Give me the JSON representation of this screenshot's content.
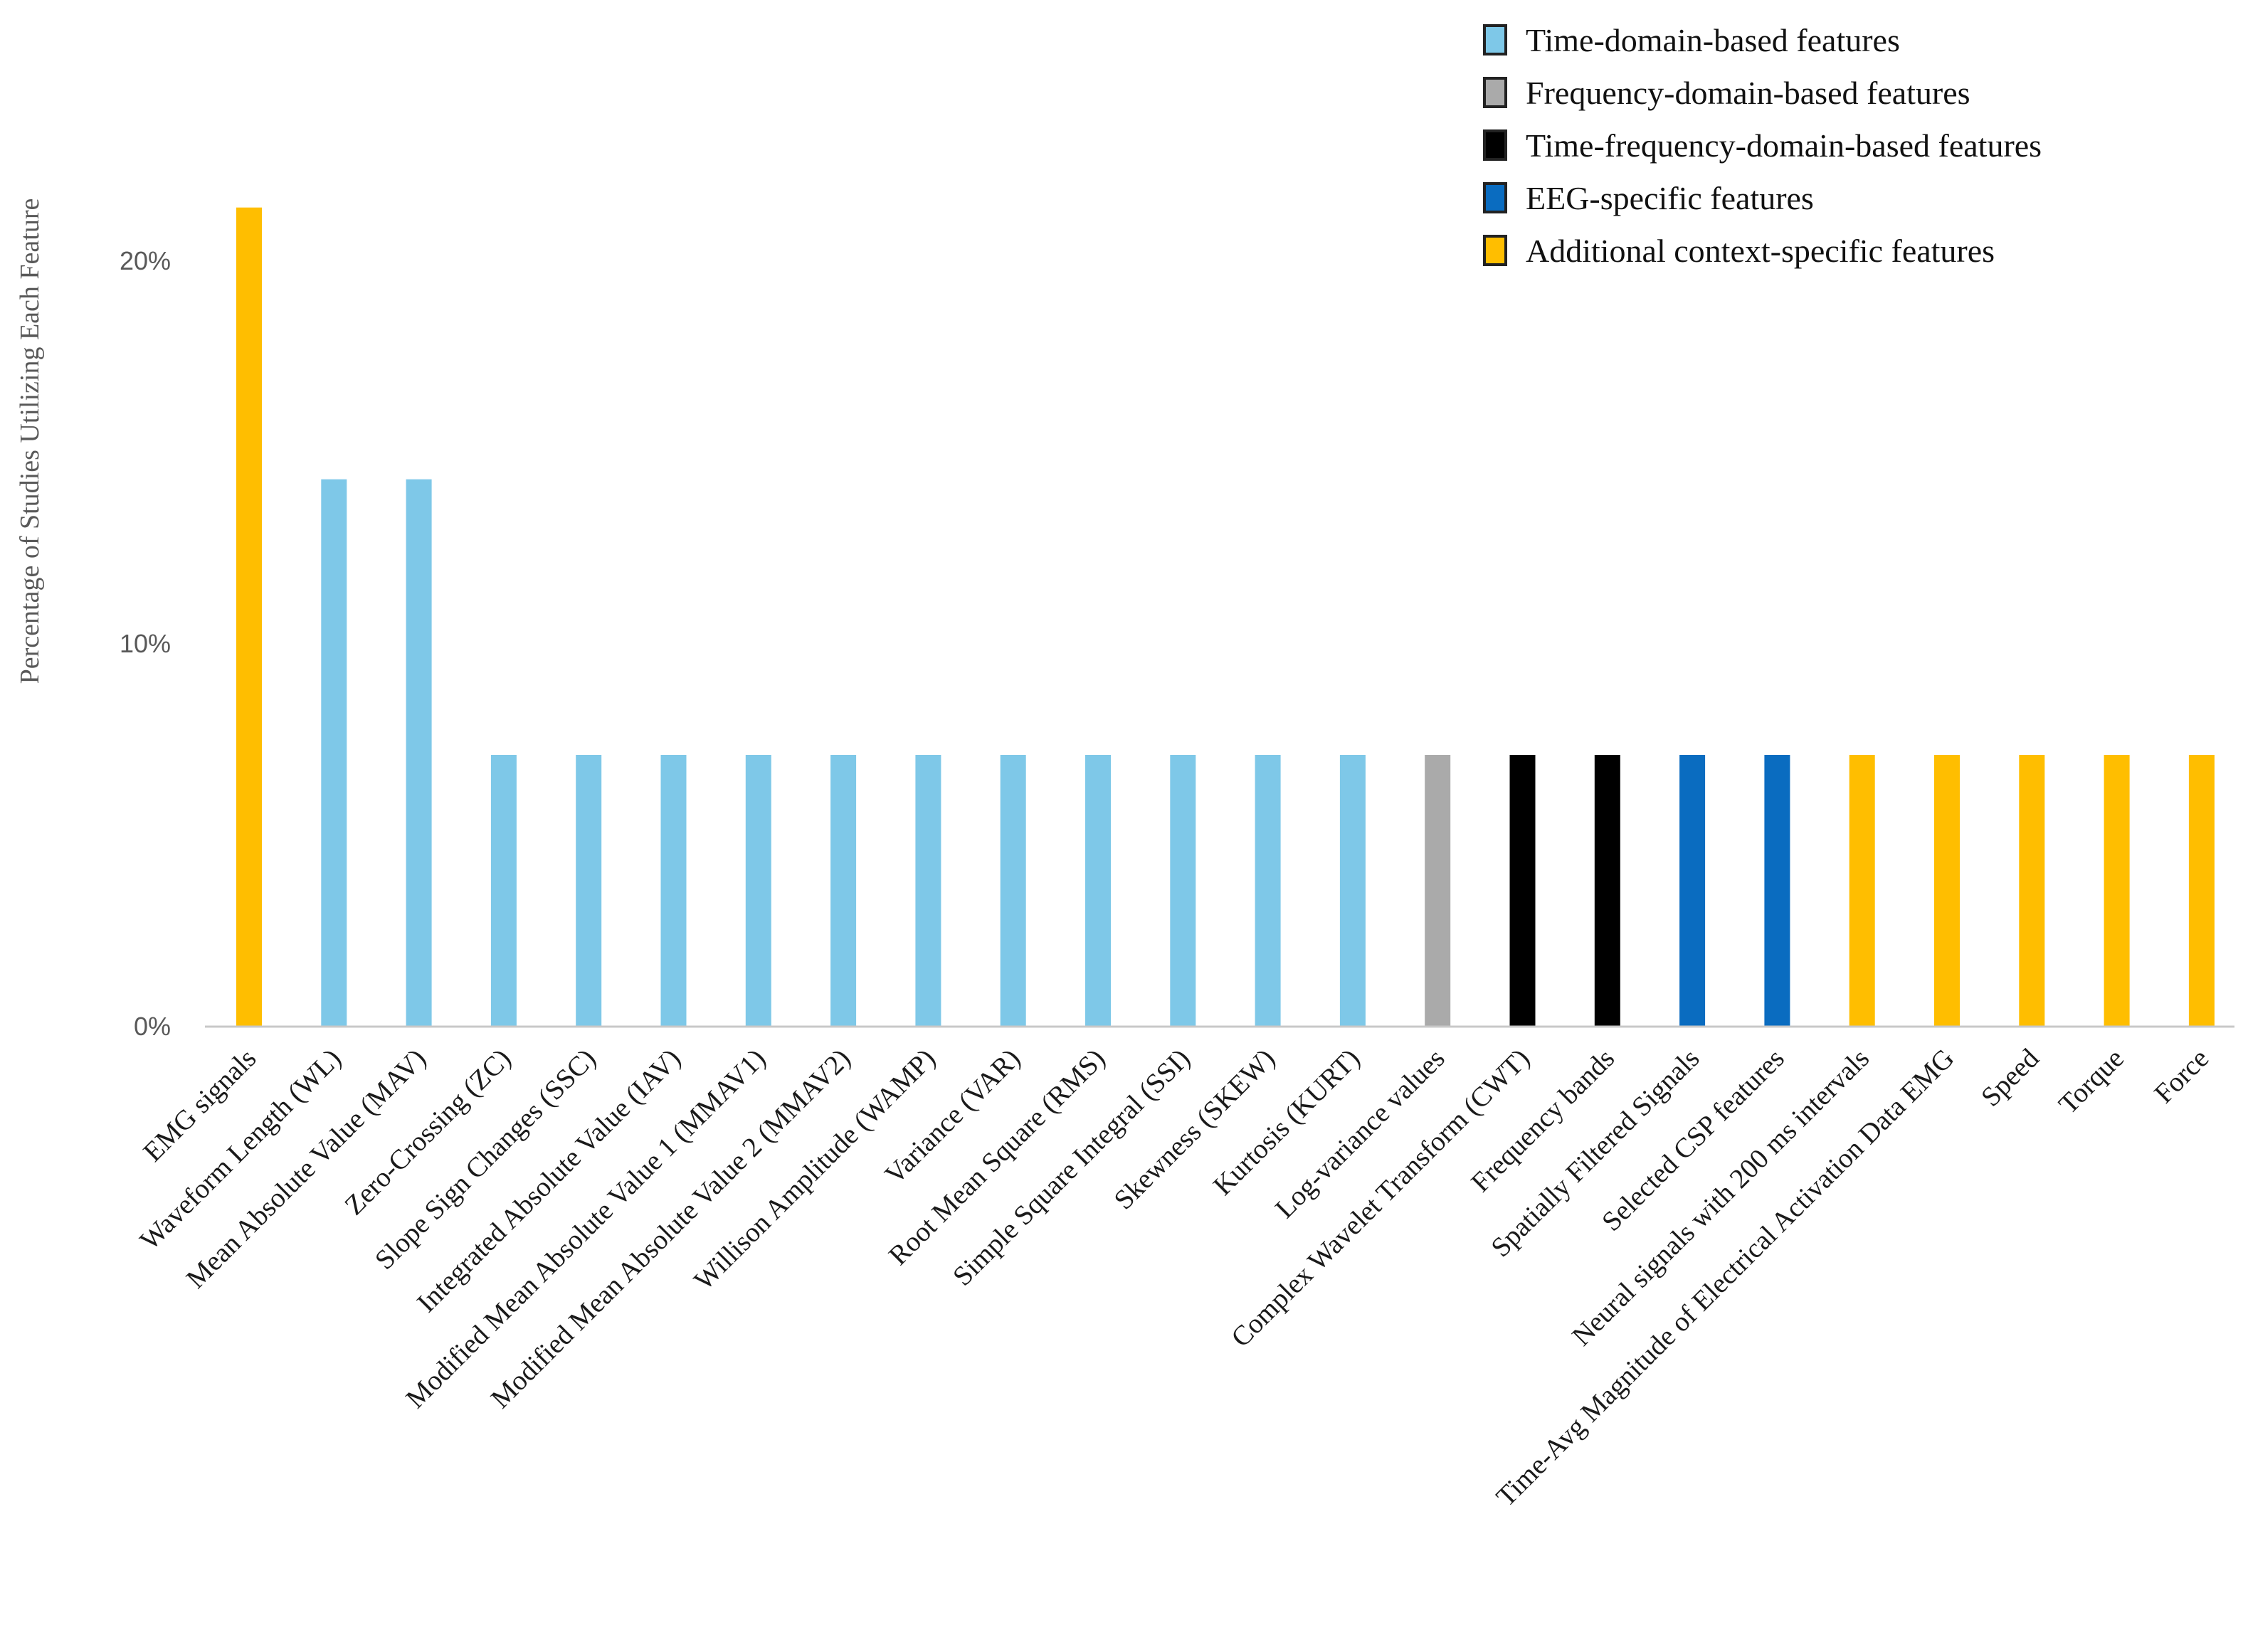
{
  "chart_data": {
    "type": "bar",
    "title": "",
    "xlabel": "",
    "ylabel": "Percentage of Studies Utilizing Each Feature",
    "ylim": [
      0,
      0.22
    ],
    "yticks": [
      {
        "value": 0,
        "label": "0%"
      },
      {
        "value": 0.1,
        "label": "10%"
      },
      {
        "value": 0.2,
        "label": "20%"
      }
    ],
    "grid": false,
    "legend_position": "top-right",
    "legend": [
      {
        "group": "time",
        "label": "Time-domain-based features",
        "color": "#7ec8e8"
      },
      {
        "group": "freq",
        "label": "Frequency-domain-based features",
        "color": "#aaaaaa"
      },
      {
        "group": "tf",
        "label": "Time-frequency-domain-based features",
        "color": "#000000"
      },
      {
        "group": "eeg",
        "label": "EEG-specific features",
        "color": "#0a6cc0"
      },
      {
        "group": "context",
        "label": "Additional context-specific features",
        "color": "#ffbe00"
      }
    ],
    "categories": [
      "EMG signals",
      "Waveform Length (WL)",
      "Mean Absolute Value (MAV)",
      "Zero-Crossing (ZC)",
      "Slope Sign Changes (SSC)",
      "Integrated Absolute Value (IAV)",
      "Modified Mean Absolute Value 1 (MMAV1)",
      "Modified Mean Absolute Value 2 (MMAV2)",
      "Willison Amplitude (WAMP)",
      "Variance (VAR)",
      "Root Mean Square (RMS)",
      "Simple Square Integral (SSI)",
      "Skewness (SKEW)",
      "Kurtosis (KURT)",
      "Log-variance values",
      "Complex Wavelet Transform (CWT)",
      "Frequency bands",
      "Spatially Filtered Signals",
      "Selected CSP features",
      "Neural signals with 200 ms intervals",
      "Time-Avg Magnitude of Electrical Activation Data EMG",
      "Speed",
      "Torque",
      "Force"
    ],
    "values": [
      0.214,
      0.143,
      0.143,
      0.071,
      0.071,
      0.071,
      0.071,
      0.071,
      0.071,
      0.071,
      0.071,
      0.071,
      0.071,
      0.071,
      0.071,
      0.071,
      0.071,
      0.071,
      0.071,
      0.071,
      0.071,
      0.071,
      0.071,
      0.071
    ],
    "groups": [
      "context",
      "time",
      "time",
      "time",
      "time",
      "time",
      "time",
      "time",
      "time",
      "time",
      "time",
      "time",
      "time",
      "time",
      "freq",
      "tf",
      "tf",
      "eeg",
      "eeg",
      "context",
      "context",
      "context",
      "context",
      "context"
    ]
  }
}
